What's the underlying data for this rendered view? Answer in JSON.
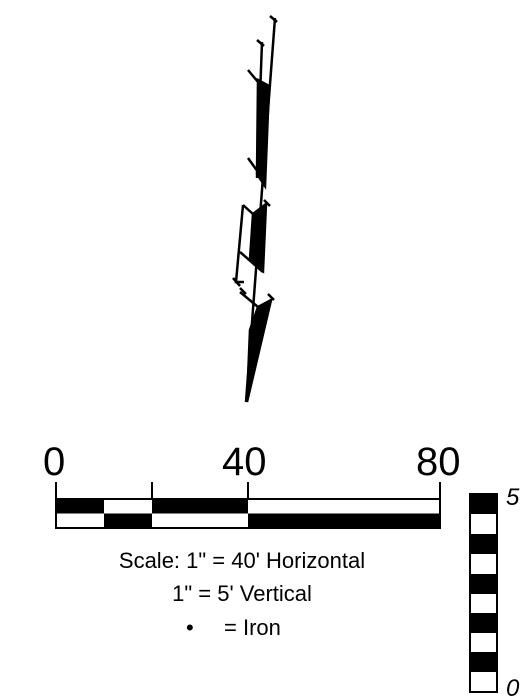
{
  "horizontal_scale": {
    "tick_labels": [
      "0",
      "40",
      "80"
    ]
  },
  "vertical_scale": {
    "top_label": "5",
    "bottom_label": "0"
  },
  "legend": {
    "scale_line": "Scale: 1\" = 40' Horizontal",
    "vertical_line": "1\" = 5' Vertical",
    "iron_symbol": "•",
    "iron_label": "=  Iron"
  },
  "colors": {
    "ink": "#000000",
    "paper": "#ffffff"
  }
}
